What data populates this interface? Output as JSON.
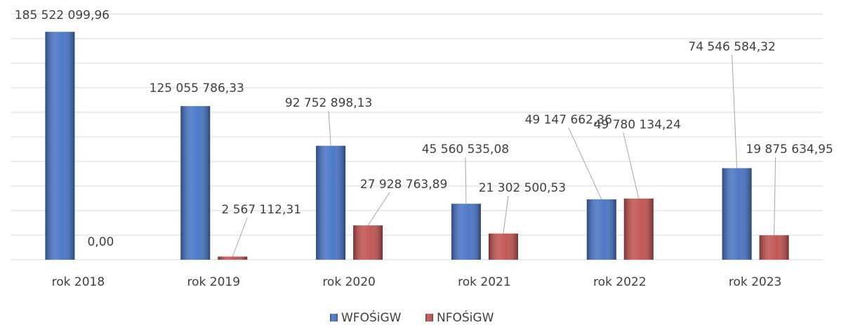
{
  "chart_data": {
    "type": "bar",
    "categories": [
      "rok 2018",
      "rok 2019",
      "rok 2020",
      "rok 2021",
      "rok 2022",
      "rok 2023"
    ],
    "series": [
      {
        "name": "WFOŚiGW",
        "color": "#4472c4",
        "values": [
          185522099.96,
          125055786.33,
          92752898.13,
          45560535.08,
          49147662.36,
          74546584.32
        ],
        "value_labels": [
          "185 522 099,96",
          "125 055 786,33",
          "92 752 898,13",
          "45 560 535,08",
          "49 147 662,36",
          "74 546 584,32"
        ]
      },
      {
        "name": "NFOŚiGW",
        "color": "#c0504d",
        "values": [
          0,
          2567112.31,
          27928763.89,
          21302500.53,
          49780134.24,
          19875634.95
        ],
        "value_labels": [
          "0,00",
          "2 567 112,31",
          "27 928 763,89",
          "21 302 500,53",
          "49 780 134,24",
          "19 875 634,95"
        ]
      }
    ],
    "ylim": [
      0,
      200000000
    ],
    "yticks": [
      0,
      20000000,
      40000000,
      60000000,
      80000000,
      100000000,
      120000000,
      140000000,
      160000000,
      180000000,
      200000000
    ],
    "grid": true,
    "legend": "bottom"
  }
}
